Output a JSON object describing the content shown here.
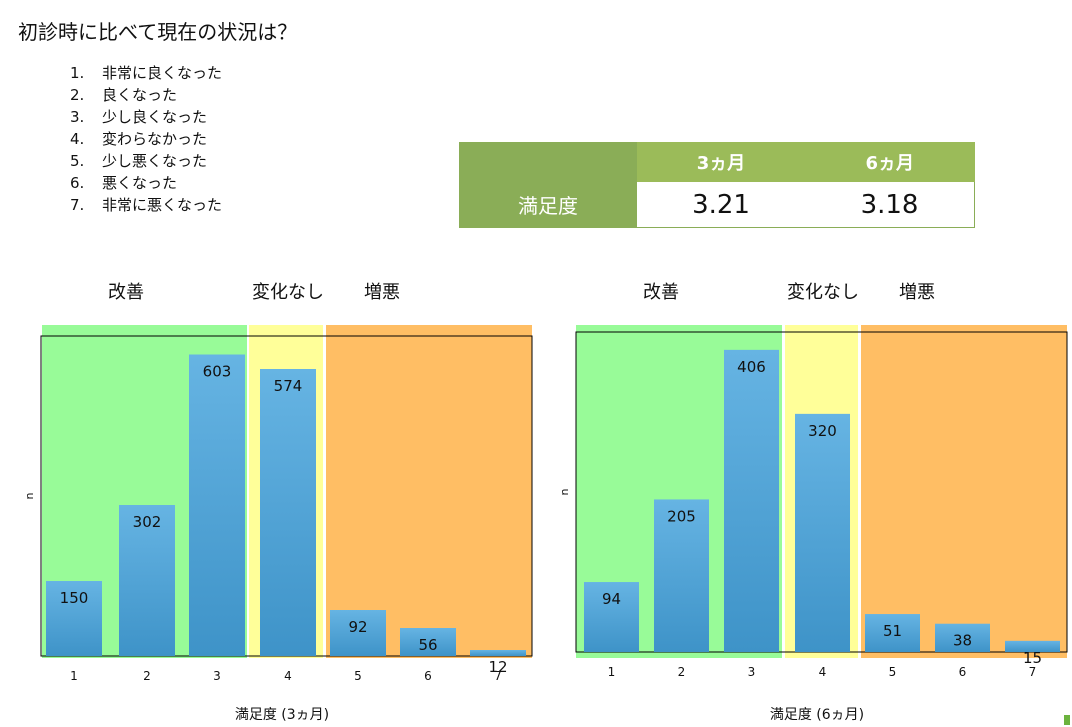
{
  "title": "初診時に比べて現在の状況は？",
  "options": [
    {
      "num": "1.",
      "label": "非常に良くなった"
    },
    {
      "num": "2.",
      "label": "良くなった"
    },
    {
      "num": "3.",
      "label": "少し良くなった"
    },
    {
      "num": "4.",
      "label": "変わらなかった"
    },
    {
      "num": "5.",
      "label": "少し悪くなった"
    },
    {
      "num": "6.",
      "label": "悪くなった"
    },
    {
      "num": "7.",
      "label": "非常に悪くなった"
    }
  ],
  "table": {
    "col1": "3ヵ月",
    "col2": "6ヵ月",
    "row_label": "満足度",
    "v1": "3.21",
    "v2": "3.18"
  },
  "colors": {
    "improve": "#98fb98",
    "nochange": "#ffff99",
    "worse": "#ffbe64",
    "bar_top": "#66b4e3",
    "bar_bottom": "#3e93c8",
    "header_green": "#9bbb59"
  },
  "chart_data": [
    {
      "type": "bar",
      "categories": [
        "1",
        "2",
        "3",
        "4",
        "5",
        "6",
        "7"
      ],
      "values": [
        150,
        302,
        603,
        574,
        92,
        56,
        12
      ],
      "xlabel": "満足度 (3ヵ月)",
      "ylabel": "n",
      "ylim": [
        0,
        640
      ],
      "grid": false,
      "regions": [
        {
          "label": "改善",
          "from": 1,
          "to": 3,
          "color": "#98fb98"
        },
        {
          "label": "変化なし",
          "from": 4,
          "to": 4,
          "color": "#ffff99"
        },
        {
          "label": "増悪",
          "from": 5,
          "to": 7,
          "color": "#ffbe64"
        }
      ]
    },
    {
      "type": "bar",
      "categories": [
        "1",
        "2",
        "3",
        "4",
        "5",
        "6",
        "7"
      ],
      "values": [
        94,
        205,
        406,
        320,
        51,
        38,
        15
      ],
      "xlabel": "満足度 (6ヵ月)",
      "ylabel": "n",
      "ylim": [
        0,
        430
      ],
      "grid": false,
      "regions": [
        {
          "label": "改善",
          "from": 1,
          "to": 3,
          "color": "#98fb98"
        },
        {
          "label": "変化なし",
          "from": 4,
          "to": 4,
          "color": "#ffff99"
        },
        {
          "label": "増悪",
          "from": 5,
          "to": 7,
          "color": "#ffbe64"
        }
      ]
    }
  ]
}
